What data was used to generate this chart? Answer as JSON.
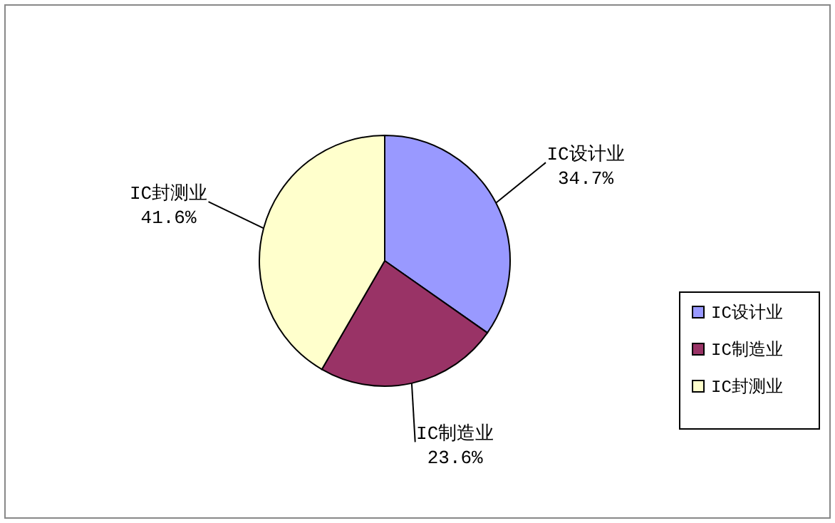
{
  "chart_data": {
    "type": "pie",
    "categories": [
      "IC设计业",
      "IC制造业",
      "IC封测业"
    ],
    "values": [
      34.7,
      23.6,
      41.6
    ],
    "colors": [
      "#9999ff",
      "#993366",
      "#ffffcc"
    ],
    "value_labels": [
      "34.7%",
      "23.6%",
      "41.6%"
    ],
    "legend": "right"
  }
}
